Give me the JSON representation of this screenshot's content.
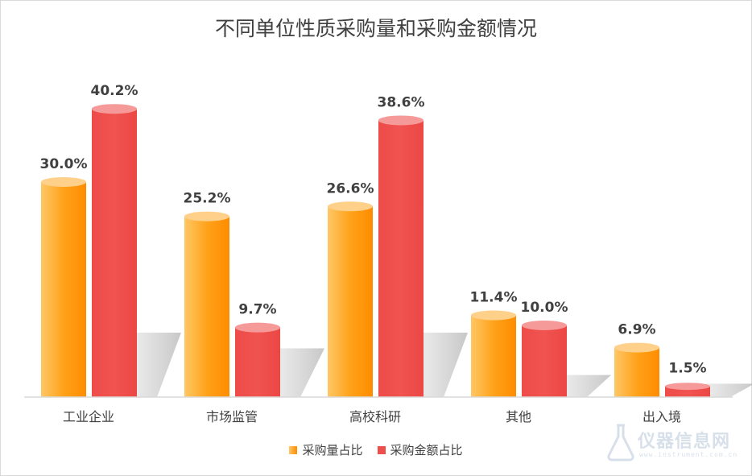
{
  "chart_data": {
    "type": "bar",
    "title": "不同单位性质采购量和采购金额情况",
    "categories": [
      "工业企业",
      "市场监管",
      "高校科研",
      "其他",
      "出入境"
    ],
    "series": [
      {
        "name": "采购量占比",
        "values": [
          30.0,
          25.2,
          26.6,
          11.4,
          6.9
        ],
        "labels": [
          "30.0%",
          "25.2%",
          "26.6%",
          "11.4%",
          "6.9%"
        ],
        "color": "#ff9500"
      },
      {
        "name": "采购金额占比",
        "values": [
          40.2,
          9.7,
          38.6,
          10.0,
          1.5
        ],
        "labels": [
          "40.2%",
          "9.7%",
          "38.6%",
          "10.0%",
          "1.5%"
        ],
        "color": "#ef4f4c"
      }
    ],
    "ylim": [
      0,
      45
    ],
    "grid": false,
    "legend": "bottom"
  },
  "watermark": {
    "text": "仪器信息网",
    "sub": "www.instrument.com.cn"
  }
}
